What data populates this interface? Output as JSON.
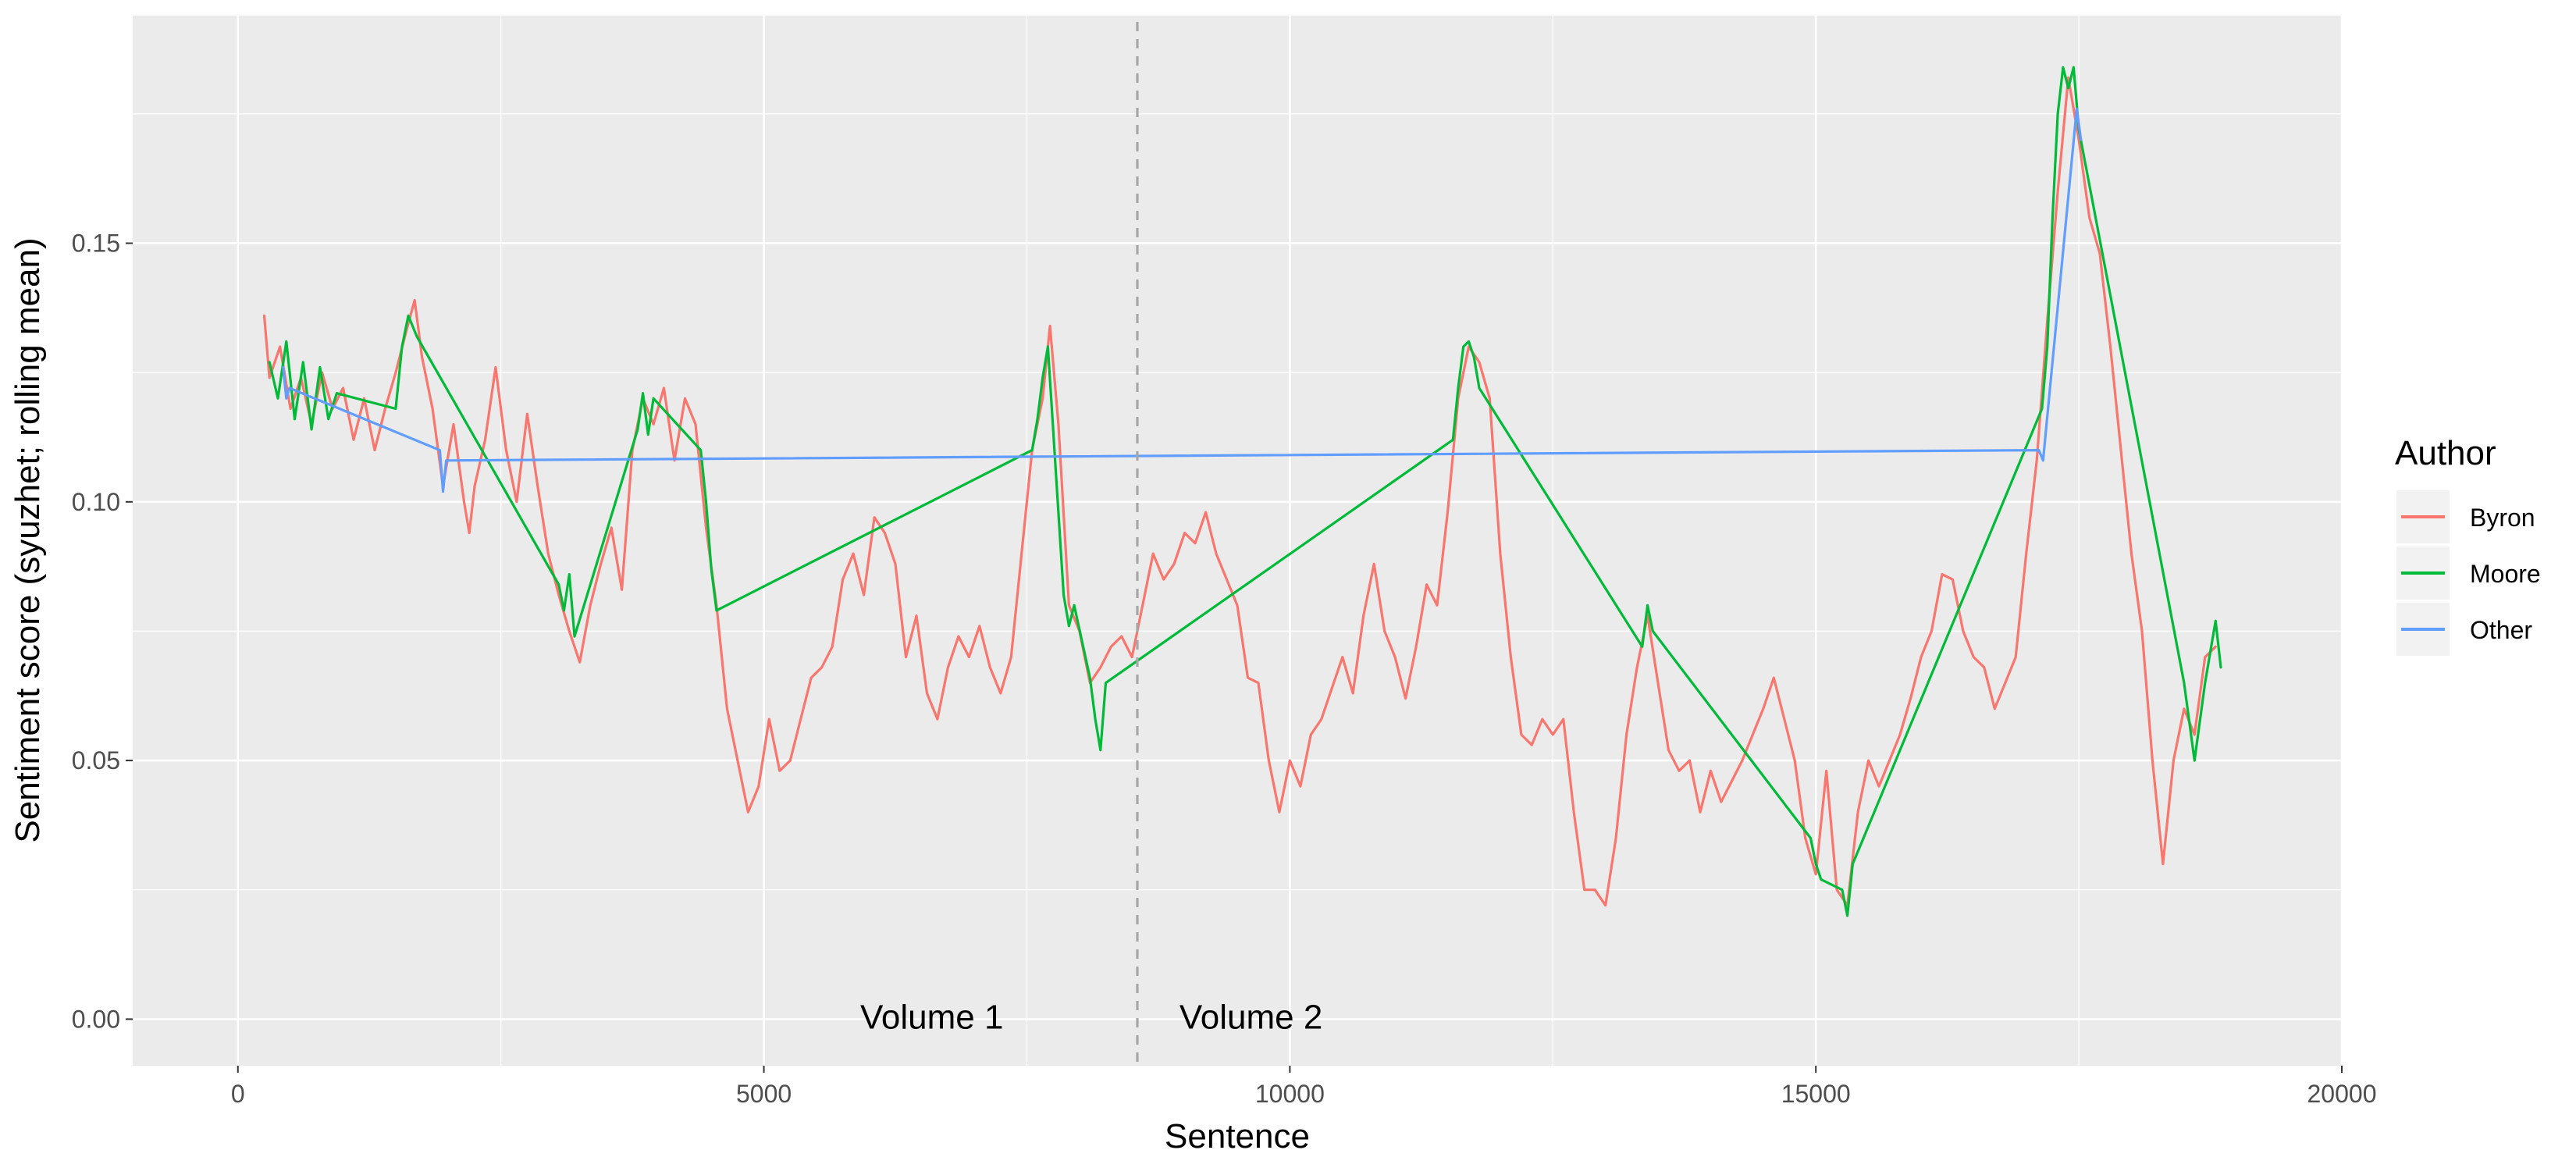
{
  "chart_data": {
    "type": "line",
    "title": "",
    "xlabel": "Sentence",
    "ylabel": "Sentiment score (syuzhet; rolling mean)",
    "xlim": [
      -1000,
      20000
    ],
    "ylim": [
      -0.009,
      0.194
    ],
    "x_ticks": [
      0,
      5000,
      10000,
      15000,
      20000
    ],
    "x_tick_labels": [
      "0",
      "5000",
      "10000",
      "15000",
      "20000"
    ],
    "y_ticks": [
      0.0,
      0.05,
      0.1,
      0.15
    ],
    "y_tick_labels": [
      "0.00",
      "0.05",
      "0.10",
      "0.15"
    ],
    "grid": true,
    "legend": {
      "title": "Author",
      "position": "right",
      "entries": [
        {
          "name": "Byron",
          "color": "#F8766D"
        },
        {
          "name": "Moore",
          "color": "#00BA38"
        },
        {
          "name": "Other",
          "color": "#619CFF"
        }
      ]
    },
    "annotations": [
      {
        "type": "vline",
        "x": 8550,
        "style": "dashed",
        "color": "#a6a6a6"
      },
      {
        "type": "text",
        "text": "Volume 1",
        "x": 7500,
        "y": 0.0,
        "align": "right"
      },
      {
        "type": "text",
        "text": "Volume 2",
        "x": 8950,
        "y": 0.0,
        "align": "left"
      }
    ],
    "series": [
      {
        "name": "Byron",
        "color": "#F8766D",
        "points": [
          [
            250,
            0.136
          ],
          [
            300,
            0.124
          ],
          [
            400,
            0.13
          ],
          [
            500,
            0.118
          ],
          [
            600,
            0.124
          ],
          [
            700,
            0.115
          ],
          [
            800,
            0.125
          ],
          [
            900,
            0.118
          ],
          [
            1000,
            0.122
          ],
          [
            1100,
            0.112
          ],
          [
            1200,
            0.12
          ],
          [
            1300,
            0.11
          ],
          [
            1400,
            0.118
          ],
          [
            1500,
            0.125
          ],
          [
            1600,
            0.133
          ],
          [
            1680,
            0.139
          ],
          [
            1750,
            0.128
          ],
          [
            1850,
            0.118
          ],
          [
            1950,
            0.103
          ],
          [
            2050,
            0.115
          ],
          [
            2150,
            0.1
          ],
          [
            2200,
            0.094
          ],
          [
            2250,
            0.103
          ],
          [
            2350,
            0.112
          ],
          [
            2450,
            0.126
          ],
          [
            2550,
            0.11
          ],
          [
            2650,
            0.1
          ],
          [
            2750,
            0.117
          ],
          [
            2850,
            0.103
          ],
          [
            2950,
            0.09
          ],
          [
            3050,
            0.082
          ],
          [
            3150,
            0.075
          ],
          [
            3250,
            0.069
          ],
          [
            3350,
            0.08
          ],
          [
            3450,
            0.088
          ],
          [
            3550,
            0.095
          ],
          [
            3650,
            0.083
          ],
          [
            3750,
            0.11
          ],
          [
            3850,
            0.12
          ],
          [
            3950,
            0.115
          ],
          [
            4050,
            0.122
          ],
          [
            4150,
            0.108
          ],
          [
            4250,
            0.12
          ],
          [
            4350,
            0.115
          ],
          [
            4450,
            0.095
          ],
          [
            4550,
            0.08
          ],
          [
            4650,
            0.06
          ],
          [
            4750,
            0.05
          ],
          [
            4850,
            0.04
          ],
          [
            4950,
            0.045
          ],
          [
            5050,
            0.058
          ],
          [
            5150,
            0.048
          ],
          [
            5250,
            0.05
          ],
          [
            5350,
            0.058
          ],
          [
            5450,
            0.066
          ],
          [
            5550,
            0.068
          ],
          [
            5650,
            0.072
          ],
          [
            5750,
            0.085
          ],
          [
            5850,
            0.09
          ],
          [
            5950,
            0.082
          ],
          [
            6050,
            0.097
          ],
          [
            6150,
            0.094
          ],
          [
            6250,
            0.088
          ],
          [
            6350,
            0.07
          ],
          [
            6450,
            0.078
          ],
          [
            6550,
            0.063
          ],
          [
            6650,
            0.058
          ],
          [
            6750,
            0.068
          ],
          [
            6850,
            0.074
          ],
          [
            6950,
            0.07
          ],
          [
            7050,
            0.076
          ],
          [
            7150,
            0.068
          ],
          [
            7250,
            0.063
          ],
          [
            7350,
            0.07
          ],
          [
            7450,
            0.09
          ],
          [
            7550,
            0.11
          ],
          [
            7650,
            0.12
          ],
          [
            7720,
            0.134
          ],
          [
            7800,
            0.115
          ],
          [
            7900,
            0.08
          ],
          [
            8000,
            0.075
          ],
          [
            8100,
            0.065
          ],
          [
            8200,
            0.068
          ],
          [
            8300,
            0.072
          ],
          [
            8400,
            0.074
          ],
          [
            8500,
            0.07
          ],
          [
            8600,
            0.08
          ],
          [
            8700,
            0.09
          ],
          [
            8800,
            0.085
          ],
          [
            8900,
            0.088
          ],
          [
            9000,
            0.094
          ],
          [
            9100,
            0.092
          ],
          [
            9200,
            0.098
          ],
          [
            9300,
            0.09
          ],
          [
            9400,
            0.085
          ],
          [
            9500,
            0.08
          ],
          [
            9600,
            0.066
          ],
          [
            9700,
            0.065
          ],
          [
            9800,
            0.05
          ],
          [
            9900,
            0.04
          ],
          [
            10000,
            0.05
          ],
          [
            10100,
            0.045
          ],
          [
            10200,
            0.055
          ],
          [
            10300,
            0.058
          ],
          [
            10400,
            0.064
          ],
          [
            10500,
            0.07
          ],
          [
            10600,
            0.063
          ],
          [
            10700,
            0.078
          ],
          [
            10800,
            0.088
          ],
          [
            10900,
            0.075
          ],
          [
            11000,
            0.07
          ],
          [
            11100,
            0.062
          ],
          [
            11200,
            0.072
          ],
          [
            11300,
            0.084
          ],
          [
            11400,
            0.08
          ],
          [
            11500,
            0.098
          ],
          [
            11600,
            0.12
          ],
          [
            11700,
            0.13
          ],
          [
            11800,
            0.127
          ],
          [
            11900,
            0.12
          ],
          [
            12000,
            0.09
          ],
          [
            12100,
            0.07
          ],
          [
            12200,
            0.055
          ],
          [
            12300,
            0.053
          ],
          [
            12400,
            0.058
          ],
          [
            12500,
            0.055
          ],
          [
            12600,
            0.058
          ],
          [
            12700,
            0.04
          ],
          [
            12800,
            0.025
          ],
          [
            12900,
            0.025
          ],
          [
            13000,
            0.022
          ],
          [
            13100,
            0.035
          ],
          [
            13200,
            0.055
          ],
          [
            13300,
            0.068
          ],
          [
            13400,
            0.078
          ],
          [
            13500,
            0.065
          ],
          [
            13600,
            0.052
          ],
          [
            13700,
            0.048
          ],
          [
            13800,
            0.05
          ],
          [
            13900,
            0.04
          ],
          [
            14000,
            0.048
          ],
          [
            14100,
            0.042
          ],
          [
            14200,
            0.046
          ],
          [
            14300,
            0.05
          ],
          [
            14400,
            0.055
          ],
          [
            14500,
            0.06
          ],
          [
            14600,
            0.066
          ],
          [
            14700,
            0.058
          ],
          [
            14800,
            0.05
          ],
          [
            14900,
            0.035
          ],
          [
            15000,
            0.028
          ],
          [
            15100,
            0.048
          ],
          [
            15200,
            0.025
          ],
          [
            15300,
            0.022
          ],
          [
            15400,
            0.04
          ],
          [
            15500,
            0.05
          ],
          [
            15600,
            0.045
          ],
          [
            15700,
            0.05
          ],
          [
            15800,
            0.055
          ],
          [
            15900,
            0.062
          ],
          [
            16000,
            0.07
          ],
          [
            16100,
            0.075
          ],
          [
            16200,
            0.086
          ],
          [
            16300,
            0.085
          ],
          [
            16400,
            0.075
          ],
          [
            16500,
            0.07
          ],
          [
            16600,
            0.068
          ],
          [
            16700,
            0.06
          ],
          [
            16800,
            0.065
          ],
          [
            16900,
            0.07
          ],
          [
            17000,
            0.09
          ],
          [
            17100,
            0.108
          ],
          [
            17200,
            0.135
          ],
          [
            17300,
            0.16
          ],
          [
            17400,
            0.182
          ],
          [
            17500,
            0.17
          ],
          [
            17600,
            0.155
          ],
          [
            17700,
            0.148
          ],
          [
            17800,
            0.13
          ],
          [
            17900,
            0.11
          ],
          [
            18000,
            0.09
          ],
          [
            18100,
            0.075
          ],
          [
            18200,
            0.05
          ],
          [
            18300,
            0.03
          ],
          [
            18400,
            0.05
          ],
          [
            18500,
            0.06
          ],
          [
            18600,
            0.055
          ],
          [
            18700,
            0.07
          ],
          [
            18800,
            0.072
          ]
        ]
      },
      {
        "name": "Moore",
        "color": "#00BA38",
        "points": [
          [
            300,
            0.127
          ],
          [
            380,
            0.12
          ],
          [
            460,
            0.131
          ],
          [
            540,
            0.116
          ],
          [
            620,
            0.127
          ],
          [
            700,
            0.114
          ],
          [
            780,
            0.126
          ],
          [
            860,
            0.116
          ],
          [
            940,
            0.121
          ],
          [
            1500,
            0.118
          ],
          [
            1560,
            0.13
          ],
          [
            1620,
            0.136
          ],
          [
            1700,
            0.132
          ],
          [
            3050,
            0.084
          ],
          [
            3100,
            0.079
          ],
          [
            3150,
            0.086
          ],
          [
            3200,
            0.074
          ],
          [
            3800,
            0.114
          ],
          [
            3850,
            0.121
          ],
          [
            3900,
            0.113
          ],
          [
            3950,
            0.12
          ],
          [
            4400,
            0.11
          ],
          [
            4450,
            0.1
          ],
          [
            4500,
            0.087
          ],
          [
            4550,
            0.079
          ],
          [
            7550,
            0.11
          ],
          [
            7600,
            0.116
          ],
          [
            7650,
            0.124
          ],
          [
            7700,
            0.13
          ],
          [
            7850,
            0.082
          ],
          [
            7900,
            0.076
          ],
          [
            7950,
            0.08
          ],
          [
            8100,
            0.066
          ],
          [
            8150,
            0.058
          ],
          [
            8200,
            0.052
          ],
          [
            8250,
            0.065
          ],
          [
            11550,
            0.112
          ],
          [
            11600,
            0.122
          ],
          [
            11650,
            0.13
          ],
          [
            11700,
            0.131
          ],
          [
            11750,
            0.128
          ],
          [
            11800,
            0.122
          ],
          [
            13350,
            0.072
          ],
          [
            13400,
            0.08
          ],
          [
            13450,
            0.075
          ],
          [
            14950,
            0.035
          ],
          [
            15000,
            0.03
          ],
          [
            15050,
            0.027
          ],
          [
            15250,
            0.025
          ],
          [
            15300,
            0.02
          ],
          [
            15350,
            0.03
          ],
          [
            17150,
            0.118
          ],
          [
            17200,
            0.13
          ],
          [
            17250,
            0.155
          ],
          [
            17300,
            0.175
          ],
          [
            17350,
            0.184
          ],
          [
            17400,
            0.18
          ],
          [
            17450,
            0.184
          ],
          [
            17500,
            0.172
          ],
          [
            18500,
            0.065
          ],
          [
            18600,
            0.05
          ],
          [
            18700,
            0.065
          ],
          [
            18800,
            0.077
          ],
          [
            18850,
            0.068
          ]
        ]
      },
      {
        "name": "Other",
        "color": "#619CFF",
        "points": [
          [
            430,
            0.126
          ],
          [
            460,
            0.12
          ],
          [
            490,
            0.122
          ],
          [
            1920,
            0.11
          ],
          [
            1950,
            0.102
          ],
          [
            1980,
            0.108
          ],
          [
            17120,
            0.11
          ],
          [
            17160,
            0.108
          ],
          [
            17480,
            0.176
          ],
          [
            17520,
            0.17
          ]
        ]
      }
    ]
  }
}
